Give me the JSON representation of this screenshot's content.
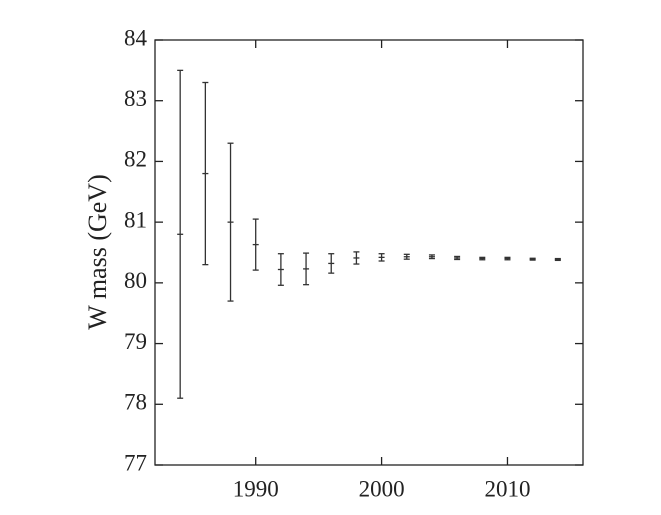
{
  "chart_data": {
    "type": "errorbar",
    "ylabel": "W mass (GeV)",
    "x": [
      1984,
      1986,
      1988,
      1990,
      1992,
      1994,
      1996,
      1998,
      2000,
      2002,
      2004,
      2006,
      2008,
      2010,
      2012,
      2014
    ],
    "values": [
      80.8,
      81.8,
      81.0,
      80.63,
      80.22,
      80.23,
      80.32,
      80.41,
      80.42,
      80.43,
      80.43,
      80.41,
      80.4,
      80.4,
      80.39,
      80.385
    ],
    "errors": [
      2.7,
      1.5,
      1.3,
      0.42,
      0.26,
      0.26,
      0.16,
      0.1,
      0.06,
      0.04,
      0.03,
      0.025,
      0.02,
      0.02,
      0.015,
      0.015
    ],
    "color": "#333333",
    "xlim": [
      1982,
      2016
    ],
    "ylim": [
      77,
      84
    ],
    "xticks": [
      1990,
      2000,
      2010
    ],
    "yticks": [
      77,
      78,
      79,
      80,
      81,
      82,
      83,
      84
    ]
  }
}
